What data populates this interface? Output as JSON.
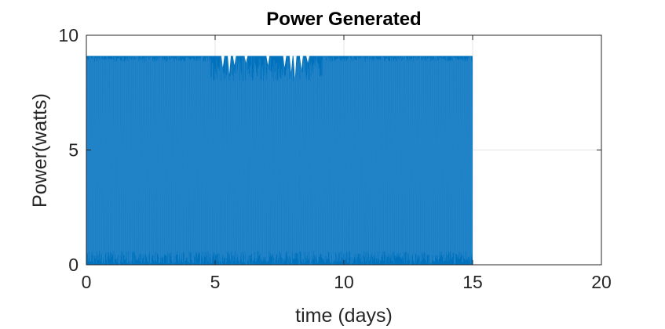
{
  "chart_data": {
    "type": "line",
    "title": "Power Generated",
    "xlabel": "time (days)",
    "ylabel": "Power(watts)",
    "xlim": [
      0,
      20
    ],
    "ylim": [
      0,
      10
    ],
    "xticks": [
      0,
      5,
      10,
      15,
      20
    ],
    "yticks": [
      0,
      5,
      10
    ],
    "grid": true,
    "series": [
      {
        "color": "#0072BD",
        "x_range": [
          0,
          15
        ],
        "y_range": [
          0,
          9.1
        ],
        "description": "dense oscillating signal between ~0 and ~9.1 watts over 0–15 days"
      }
    ]
  }
}
